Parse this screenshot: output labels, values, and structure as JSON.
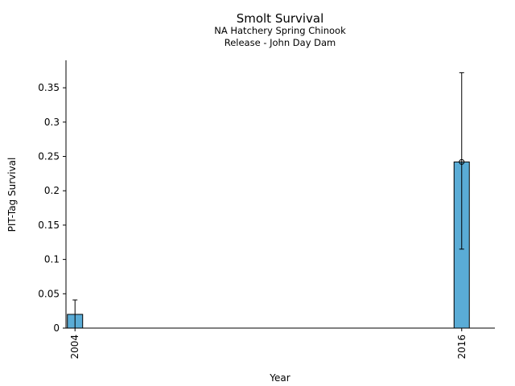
{
  "chart_data": {
    "type": "bar",
    "title": "Smolt Survival",
    "subtitle_lines": [
      "NA Hatchery Spring Chinook",
      "Release - John Day Dam"
    ],
    "xlabel": "Year",
    "ylabel": "PIT-Tag Survival",
    "x": [
      2004,
      2016
    ],
    "x_tick_labels": [
      "2004",
      "2016"
    ],
    "xlim": [
      2003.72,
      2017.03
    ],
    "values": [
      0.02,
      0.242
    ],
    "error_low": [
      0.0,
      0.115
    ],
    "error_high": [
      0.041,
      0.372
    ],
    "point_markers": [
      false,
      true
    ],
    "ylim": [
      0,
      0.39
    ],
    "y_ticks": [
      0,
      0.05,
      0.1,
      0.15,
      0.2,
      0.25,
      0.3,
      0.35
    ],
    "y_tick_labels": [
      "0",
      "0.05",
      "0.1",
      "0.15",
      "0.2",
      "0.25",
      "0.3",
      "0.35"
    ],
    "grid": false,
    "bar_color": "#5aacd6",
    "edge_color": "#000000"
  }
}
